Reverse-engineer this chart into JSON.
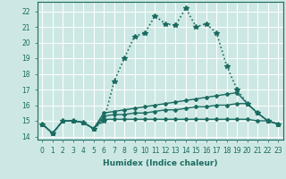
{
  "xlabel": "Humidex (Indice chaleur)",
  "bg_color": "#cde8e4",
  "grid_color": "#ffffff",
  "line_color": "#1a6b60",
  "xlim": [
    -0.5,
    23.5
  ],
  "ylim": [
    13.8,
    22.6
  ],
  "xticks": [
    0,
    1,
    2,
    3,
    4,
    5,
    6,
    7,
    8,
    9,
    10,
    11,
    12,
    13,
    14,
    15,
    16,
    17,
    18,
    19,
    20,
    21,
    22,
    23
  ],
  "yticks": [
    14,
    15,
    16,
    17,
    18,
    19,
    20,
    21,
    22
  ],
  "series": [
    {
      "x": [
        0,
        1,
        2,
        3,
        4,
        5,
        6,
        7,
        8,
        9,
        10,
        11,
        12,
        13,
        14,
        15,
        16,
        17,
        18,
        19,
        20,
        21,
        22,
        23
      ],
      "y": [
        14.8,
        14.2,
        15.0,
        15.0,
        14.9,
        14.5,
        15.0,
        17.5,
        19.0,
        20.4,
        20.6,
        21.7,
        21.2,
        21.1,
        22.2,
        21.0,
        21.2,
        20.6,
        18.5,
        17.0,
        16.1,
        15.5,
        15.0,
        14.8
      ],
      "marker": "*",
      "ms": 4,
      "lw": 1.2,
      "dotted": true
    },
    {
      "x": [
        0,
        1,
        2,
        3,
        4,
        5,
        6,
        7,
        8,
        9,
        10,
        11,
        12,
        13,
        14,
        15,
        16,
        17,
        18,
        19,
        20,
        21,
        22,
        23
      ],
      "y": [
        14.8,
        14.2,
        15.0,
        15.0,
        14.9,
        14.5,
        15.5,
        15.6,
        15.7,
        15.8,
        15.9,
        16.0,
        16.1,
        16.2,
        16.3,
        16.4,
        16.5,
        16.6,
        16.7,
        16.8,
        16.1,
        15.5,
        15.0,
        14.8
      ],
      "marker": "D",
      "ms": 2,
      "lw": 1.0,
      "dotted": false
    },
    {
      "x": [
        0,
        1,
        2,
        3,
        4,
        5,
        6,
        7,
        8,
        9,
        10,
        11,
        12,
        13,
        14,
        15,
        16,
        17,
        18,
        19,
        20,
        21,
        22,
        23
      ],
      "y": [
        14.8,
        14.2,
        15.0,
        15.0,
        14.9,
        14.5,
        15.3,
        15.4,
        15.4,
        15.5,
        15.5,
        15.6,
        15.7,
        15.7,
        15.8,
        15.9,
        15.9,
        16.0,
        16.0,
        16.1,
        16.1,
        15.5,
        15.0,
        14.8
      ],
      "marker": "D",
      "ms": 2,
      "lw": 1.0,
      "dotted": false
    },
    {
      "x": [
        0,
        1,
        2,
        3,
        4,
        5,
        6,
        7,
        8,
        9,
        10,
        11,
        12,
        13,
        14,
        15,
        16,
        17,
        18,
        19,
        20,
        21,
        22,
        23
      ],
      "y": [
        14.8,
        14.2,
        15.0,
        15.0,
        14.9,
        14.5,
        15.1,
        15.1,
        15.1,
        15.1,
        15.1,
        15.1,
        15.1,
        15.1,
        15.1,
        15.1,
        15.1,
        15.1,
        15.1,
        15.1,
        15.1,
        15.0,
        15.0,
        14.8
      ],
      "marker": "D",
      "ms": 2,
      "lw": 1.0,
      "dotted": false
    }
  ]
}
